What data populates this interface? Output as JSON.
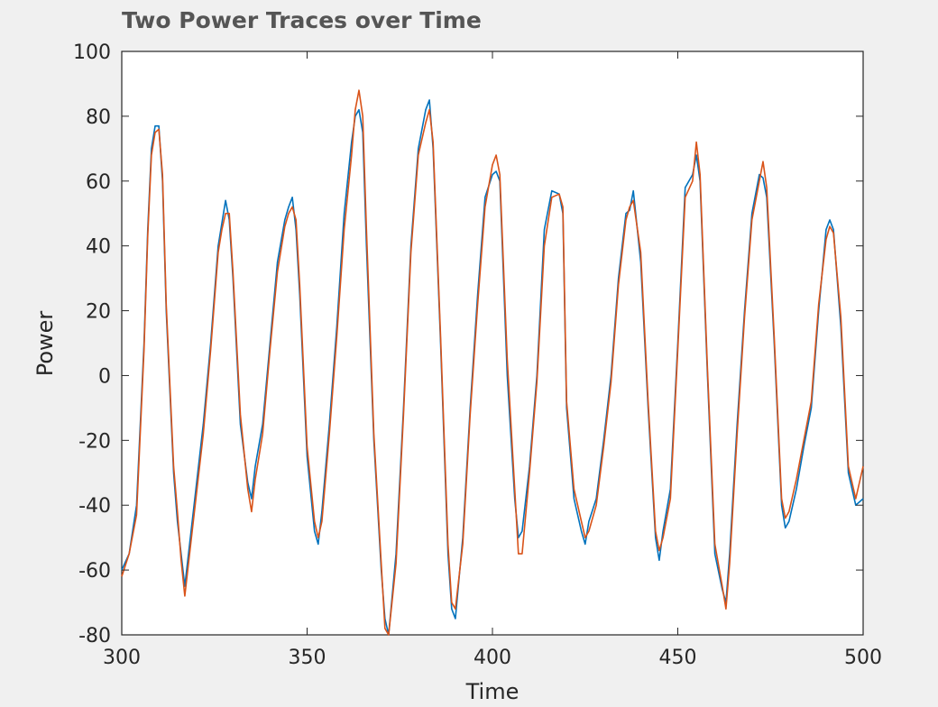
{
  "chart_data": {
    "type": "line",
    "title": "Two Power Traces over Time",
    "xlabel": "Time",
    "ylabel": "Power",
    "xlim": [
      300,
      500
    ],
    "ylim": [
      -80,
      100
    ],
    "xticks": [
      300,
      350,
      400,
      450,
      500
    ],
    "yticks": [
      -80,
      -60,
      -40,
      -20,
      0,
      20,
      40,
      60,
      80,
      100
    ],
    "grid": false,
    "series": [
      {
        "color": "#0072BD",
        "x": [
          300,
          302,
          304,
          306,
          307,
          308,
          309,
          310,
          311,
          312,
          314,
          315,
          316,
          317,
          318,
          320,
          322,
          324,
          326,
          327,
          328,
          329,
          330,
          332,
          334,
          335,
          336,
          338,
          340,
          342,
          344,
          345,
          346,
          347,
          348,
          350,
          352,
          353,
          354,
          356,
          358,
          360,
          362,
          363,
          364,
          365,
          366,
          368,
          370,
          371,
          372,
          374,
          376,
          378,
          380,
          382,
          383,
          384,
          386,
          388,
          389,
          390,
          392,
          394,
          396,
          398,
          400,
          401,
          402,
          404,
          406,
          407,
          408,
          410,
          412,
          414,
          416,
          418,
          419,
          420,
          422,
          424,
          425,
          426,
          428,
          430,
          432,
          434,
          436,
          437,
          438,
          440,
          442,
          444,
          445,
          446,
          448,
          450,
          452,
          454,
          455,
          456,
          458,
          460,
          462,
          463,
          464,
          466,
          468,
          470,
          472,
          473,
          474,
          476,
          478,
          479,
          480,
          482,
          484,
          486,
          488,
          490,
          491,
          492,
          494,
          496,
          497,
          498,
          500
        ],
        "y": [
          -60,
          -55,
          -40,
          10,
          45,
          70,
          77,
          77,
          60,
          20,
          -30,
          -45,
          -55,
          -65,
          -55,
          -35,
          -15,
          10,
          40,
          47,
          54,
          48,
          30,
          -15,
          -33,
          -38,
          -28,
          -15,
          10,
          35,
          48,
          52,
          55,
          45,
          25,
          -25,
          -48,
          -52,
          -42,
          -15,
          15,
          50,
          72,
          80,
          82,
          75,
          40,
          -20,
          -60,
          -75,
          -80,
          -55,
          -10,
          40,
          70,
          82,
          85,
          70,
          10,
          -55,
          -72,
          -75,
          -50,
          -10,
          25,
          55,
          62,
          63,
          60,
          0,
          -38,
          -50,
          -48,
          -28,
          0,
          45,
          57,
          56,
          50,
          -10,
          -38,
          -48,
          -52,
          -45,
          -38,
          -20,
          0,
          30,
          50,
          51,
          57,
          35,
          -10,
          -50,
          -57,
          -48,
          -35,
          10,
          58,
          62,
          68,
          60,
          0,
          -55,
          -66,
          -70,
          -55,
          -15,
          20,
          50,
          62,
          61,
          55,
          10,
          -40,
          -47,
          -45,
          -35,
          -22,
          -10,
          20,
          45,
          48,
          45,
          15,
          -30,
          -35,
          -40,
          -38
        ]
      },
      {
        "color": "#D95319",
        "x": [
          300,
          302,
          304,
          306,
          307,
          308,
          309,
          310,
          311,
          312,
          314,
          315,
          316,
          317,
          318,
          320,
          322,
          324,
          326,
          327,
          328,
          329,
          330,
          332,
          334,
          335,
          336,
          338,
          340,
          342,
          344,
          345,
          346,
          347,
          348,
          350,
          352,
          353,
          354,
          356,
          358,
          360,
          362,
          363,
          364,
          365,
          366,
          368,
          370,
          371,
          372,
          374,
          376,
          378,
          380,
          382,
          383,
          384,
          386,
          388,
          389,
          390,
          392,
          394,
          396,
          398,
          400,
          401,
          402,
          404,
          406,
          407,
          408,
          410,
          412,
          414,
          416,
          418,
          419,
          420,
          422,
          424,
          425,
          426,
          428,
          430,
          432,
          434,
          436,
          437,
          438,
          440,
          442,
          444,
          445,
          446,
          448,
          450,
          452,
          454,
          455,
          456,
          458,
          460,
          462,
          463,
          464,
          466,
          468,
          470,
          472,
          473,
          474,
          476,
          478,
          479,
          480,
          482,
          484,
          486,
          488,
          490,
          491,
          492,
          494,
          496,
          497,
          498,
          500
        ],
        "y": [
          -62,
          -55,
          -43,
          8,
          43,
          68,
          75,
          76,
          62,
          22,
          -28,
          -42,
          -57,
          -68,
          -58,
          -38,
          -18,
          8,
          38,
          45,
          50,
          50,
          32,
          -12,
          -35,
          -42,
          -32,
          -18,
          8,
          32,
          46,
          50,
          52,
          48,
          28,
          -22,
          -45,
          -50,
          -45,
          -18,
          12,
          45,
          68,
          82,
          88,
          80,
          45,
          -18,
          -58,
          -78,
          -80,
          -58,
          -12,
          38,
          68,
          78,
          82,
          72,
          12,
          -52,
          -70,
          -72,
          -52,
          -12,
          22,
          52,
          65,
          68,
          62,
          5,
          -35,
          -55,
          -55,
          -30,
          -2,
          40,
          55,
          56,
          52,
          -8,
          -35,
          -45,
          -50,
          -48,
          -40,
          -22,
          -2,
          28,
          48,
          52,
          54,
          38,
          -8,
          -48,
          -54,
          -50,
          -38,
          8,
          55,
          60,
          72,
          62,
          2,
          -52,
          -65,
          -72,
          -58,
          -18,
          18,
          48,
          60,
          66,
          58,
          12,
          -38,
          -44,
          -42,
          -32,
          -20,
          -8,
          22,
          42,
          46,
          44,
          18,
          -28,
          -33,
          -38,
          -28
        ]
      }
    ]
  }
}
